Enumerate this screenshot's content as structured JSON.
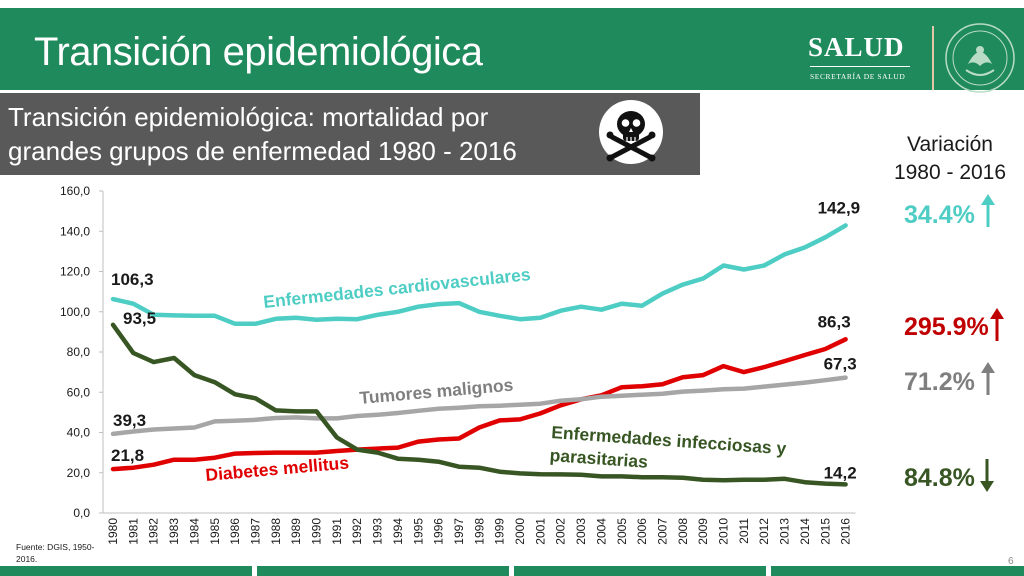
{
  "header": {
    "title": "Transición epidemiológica",
    "logo_text": "SALUD",
    "logo_subtext": "SECRETARÍA DE SALUD",
    "seal_icon": "mexican-coat-of-arms-seal"
  },
  "subtitle": {
    "text": "Transición epidemiológica: mortalidad por grandes grupos de enfermedad 1980 - 2016",
    "icon": "skull-crossbones-icon"
  },
  "variation": {
    "title_line1": "Variación",
    "title_line2": "1980 - 2016",
    "items": [
      {
        "value": "34.4%",
        "direction": "up",
        "color": "#4ecdc4"
      },
      {
        "value": "295.9%",
        "direction": "up",
        "color": "#c00000"
      },
      {
        "value": "71.2%",
        "direction": "up",
        "color": "#7f7f7f"
      },
      {
        "value": "84.8%",
        "direction": "down",
        "color": "#375623"
      }
    ]
  },
  "footnote": "Fuente: DGIS, 1950-2016.",
  "page_number": "6",
  "colors": {
    "brand_green": "#1f8a5b",
    "subtitle_bg": "#595959"
  },
  "chart_data": {
    "type": "line",
    "ylim": [
      0,
      160
    ],
    "yticks": [
      "0,0",
      "20,0",
      "40,0",
      "60,0",
      "80,0",
      "100,0",
      "120,0",
      "140,0",
      "160,0"
    ],
    "x": [
      "1980",
      "1981",
      "1982",
      "1983",
      "1984",
      "1985",
      "1986",
      "1987",
      "1988",
      "1989",
      "1990",
      "1991",
      "1992",
      "1993",
      "1994",
      "1995",
      "1996",
      "1997",
      "1998",
      "1999",
      "2000",
      "2001",
      "2002",
      "2003",
      "2004",
      "2005",
      "2006",
      "2007",
      "2008",
      "2009",
      "2010",
      "2011",
      "2012",
      "2013",
      "2014",
      "2015",
      "2016"
    ],
    "grid": false,
    "legend": "inline labels",
    "series": [
      {
        "name": "Enfermedades cardiovasculares",
        "color": "#4ecdc4",
        "values": [
          106.3,
          104,
          98.5,
          98.2,
          98,
          98,
          94,
          94,
          96.5,
          97,
          96,
          96.5,
          96.3,
          98.5,
          100,
          102.5,
          103.8,
          104.3,
          100,
          98,
          96.3,
          97,
          100.5,
          102.5,
          101,
          104,
          103,
          109,
          113.5,
          116.5,
          123,
          121,
          123,
          128.5,
          132,
          137,
          142.9
        ],
        "start_label": "106,3",
        "end_label": "142,9"
      },
      {
        "name": "Diabetes mellitus",
        "color": "#e00000",
        "values": [
          21.8,
          22.5,
          24,
          26.5,
          26.5,
          27.5,
          29.5,
          29.8,
          30,
          30,
          30,
          30.8,
          31.5,
          32,
          32.5,
          35.5,
          36.5,
          37,
          42.5,
          46,
          46.5,
          49.5,
          53.5,
          56.5,
          58.5,
          62.5,
          63,
          64,
          67.5,
          68.5,
          73,
          70,
          72.5,
          75.5,
          78.5,
          81.5,
          86.3
        ],
        "start_label": "21,8",
        "end_label": "86,3"
      },
      {
        "name": "Tumores malignos",
        "color": "#a6a6a6",
        "values": [
          39.3,
          40.5,
          41.5,
          42,
          42.5,
          45.5,
          45.8,
          46.3,
          47.2,
          47.5,
          47,
          47,
          48.2,
          48.8,
          49.7,
          50.8,
          51.8,
          52.3,
          53,
          53.3,
          53.8,
          54.3,
          55.8,
          56.5,
          57.8,
          58.3,
          58.8,
          59.3,
          60.3,
          60.8,
          61.5,
          61.8,
          62.8,
          63.8,
          64.8,
          66,
          67.3
        ],
        "start_label": "39,3",
        "end_label": "67,3"
      },
      {
        "name": "Enfermedades infecciosas y parasitarias",
        "color": "#375623",
        "values": [
          93.5,
          79.5,
          75,
          77,
          68.5,
          65,
          59,
          57,
          51,
          50.5,
          50.5,
          37.5,
          31.5,
          30,
          27,
          26.5,
          25.5,
          23,
          22.5,
          20.5,
          19.7,
          19.3,
          19.2,
          19,
          18.2,
          18.2,
          17.8,
          17.8,
          17.5,
          16.5,
          16.3,
          16.5,
          16.5,
          17,
          15.3,
          14.6,
          14.2
        ],
        "start_label": "93,5",
        "end_label": "14,2"
      }
    ]
  }
}
